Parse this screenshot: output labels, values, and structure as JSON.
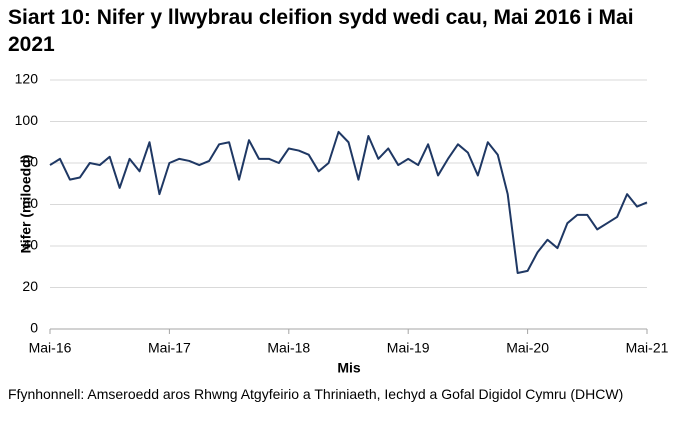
{
  "chart_data": {
    "type": "line",
    "title": "Siart 10: Nifer y llwybrau cleifion sydd wedi cau, Mai 2016 i Mai 2021",
    "x_label": "Mis",
    "y_label": "Nifer (miloedd)",
    "source": "Ffynhonnell: Amseroedd aros Rhwng Atgyfeirio a Thriniaeth, Iechyd a Gofal Digidol Cymru (DHCW)",
    "categories": [
      "Mai-16",
      null,
      null,
      null,
      null,
      null,
      null,
      null,
      null,
      null,
      null,
      null,
      "Mai-17",
      null,
      null,
      null,
      null,
      null,
      null,
      null,
      null,
      null,
      null,
      null,
      "Mai-18",
      null,
      null,
      null,
      null,
      null,
      null,
      null,
      null,
      null,
      null,
      null,
      "Mai-19",
      null,
      null,
      null,
      null,
      null,
      null,
      null,
      null,
      null,
      null,
      null,
      "Mai-20",
      null,
      null,
      null,
      null,
      null,
      null,
      null,
      null,
      null,
      null,
      null,
      "Mai-21"
    ],
    "values": [
      79,
      82,
      72,
      73,
      80,
      79,
      83,
      68,
      82,
      76,
      90,
      65,
      80,
      82,
      81,
      79,
      81,
      89,
      90,
      72,
      91,
      82,
      82,
      80,
      87,
      86,
      84,
      76,
      80,
      95,
      90,
      72,
      93,
      82,
      87,
      79,
      82,
      79,
      89,
      74,
      82,
      89,
      85,
      74,
      90,
      84,
      65,
      27,
      28,
      37,
      43,
      39,
      51,
      55,
      55,
      48,
      51,
      54,
      65,
      59,
      61
    ],
    "color": "#1f3864",
    "ylim": [
      0,
      120
    ],
    "yticks": [
      0,
      20,
      40,
      60,
      80,
      100,
      120
    ],
    "grid": true
  }
}
